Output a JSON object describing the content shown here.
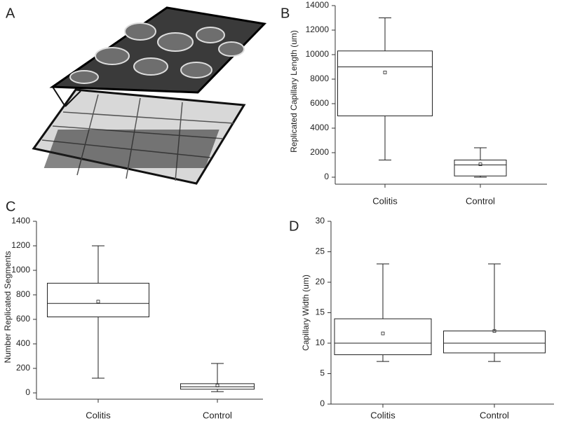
{
  "image_panel": {
    "label": "A"
  },
  "chart_data": [
    {
      "type": "box",
      "panel": "B",
      "ylabel": "Replicated Capillary Length (um)",
      "categories": [
        "Colitis",
        "Control"
      ],
      "boxes": [
        {
          "whislo": 1400,
          "q1": 5000,
          "med": 9000,
          "q3": 10300,
          "whishi": 13000,
          "mean": 8550
        },
        {
          "whislo": 0,
          "q1": 100,
          "med": 1000,
          "q3": 1400,
          "whishi": 2400,
          "mean": 1050
        }
      ],
      "ylim": [
        0,
        14000
      ],
      "yticks": [
        0,
        2000,
        4000,
        6000,
        8000,
        10000,
        12000,
        14000
      ],
      "color": "#222222"
    },
    {
      "type": "box",
      "panel": "C",
      "ylabel": "Number Replicated Segments",
      "categories": [
        "Colitis",
        "Control"
      ],
      "boxes": [
        {
          "whislo": 120,
          "q1": 620,
          "med": 730,
          "q3": 895,
          "whishi": 1200,
          "mean": 745
        },
        {
          "whislo": 10,
          "q1": 30,
          "med": 50,
          "q3": 75,
          "whishi": 240,
          "mean": 60
        }
      ],
      "ylim": [
        0,
        1400
      ],
      "yticks": [
        0,
        200,
        400,
        600,
        800,
        1000,
        1200,
        1400
      ],
      "color": "#222222"
    },
    {
      "type": "box",
      "panel": "D",
      "ylabel": "Capillary Width (um)",
      "categories": [
        "Colitis",
        "Control"
      ],
      "boxes": [
        {
          "whislo": 7,
          "q1": 8.1,
          "med": 10,
          "q3": 14,
          "whishi": 23,
          "mean": 11.6
        },
        {
          "whislo": 7,
          "q1": 8.4,
          "med": 10,
          "q3": 12,
          "whishi": 23,
          "mean": 12
        }
      ],
      "ylim": [
        0,
        30
      ],
      "yticks": [
        0,
        5,
        10,
        15,
        20,
        25,
        30
      ],
      "color": "#222222"
    }
  ]
}
